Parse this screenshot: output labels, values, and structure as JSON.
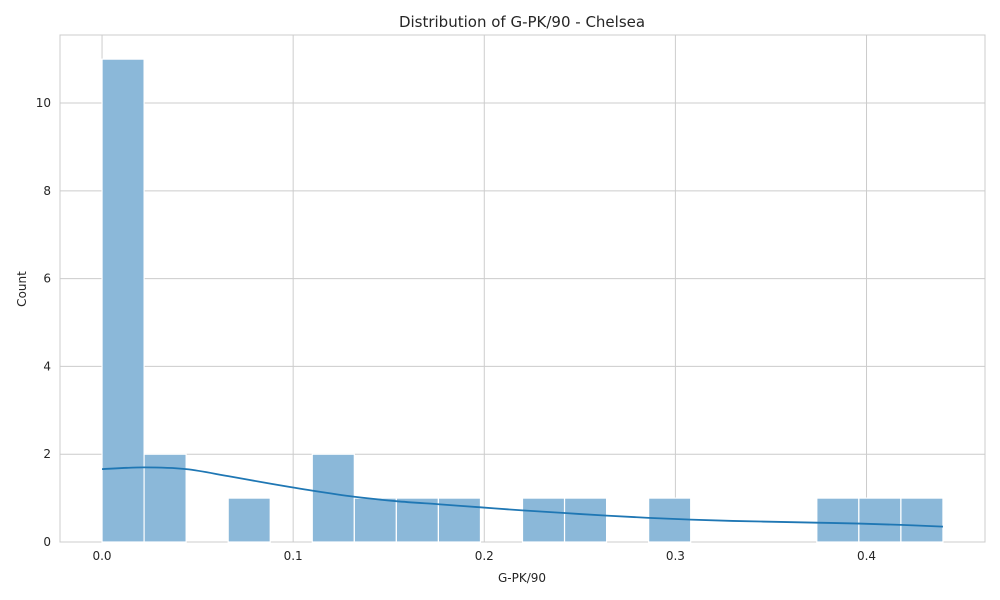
{
  "chart_data": {
    "type": "bar",
    "title": "Distribution of G-PK/90 - Chelsea",
    "xlabel": "G-PK/90",
    "ylabel": "Count",
    "xlim": [
      -0.022,
      0.462
    ],
    "ylim": [
      0,
      11.55
    ],
    "xticks": [
      0.0,
      0.1,
      0.2,
      0.3,
      0.4
    ],
    "xtick_labels": [
      "0.0",
      "0.1",
      "0.2",
      "0.3",
      "0.4"
    ],
    "yticks": [
      0,
      2,
      4,
      6,
      8,
      10
    ],
    "ytick_labels": [
      "0",
      "2",
      "4",
      "6",
      "8",
      "10"
    ],
    "grid": true,
    "bin_edges": [
      0.0,
      0.022,
      0.044,
      0.066,
      0.088,
      0.11,
      0.132,
      0.154,
      0.176,
      0.198,
      0.22,
      0.242,
      0.264,
      0.286,
      0.308,
      0.33,
      0.352,
      0.374,
      0.396,
      0.418,
      0.44
    ],
    "counts": [
      11,
      2,
      0,
      1,
      0,
      2,
      1,
      1,
      1,
      0,
      1,
      1,
      0,
      1,
      0,
      0,
      0,
      1,
      1,
      1
    ],
    "bar_color": "#8bb8d9",
    "kde": {
      "color": "#1f77b4",
      "x": [
        0.0,
        0.022,
        0.044,
        0.066,
        0.088,
        0.11,
        0.132,
        0.154,
        0.176,
        0.198,
        0.22,
        0.242,
        0.264,
        0.286,
        0.308,
        0.33,
        0.352,
        0.374,
        0.396,
        0.418,
        0.44
      ],
      "y": [
        1.66,
        1.7,
        1.66,
        1.5,
        1.33,
        1.17,
        1.03,
        0.93,
        0.86,
        0.79,
        0.72,
        0.66,
        0.6,
        0.55,
        0.51,
        0.48,
        0.46,
        0.44,
        0.42,
        0.39,
        0.35
      ]
    }
  }
}
